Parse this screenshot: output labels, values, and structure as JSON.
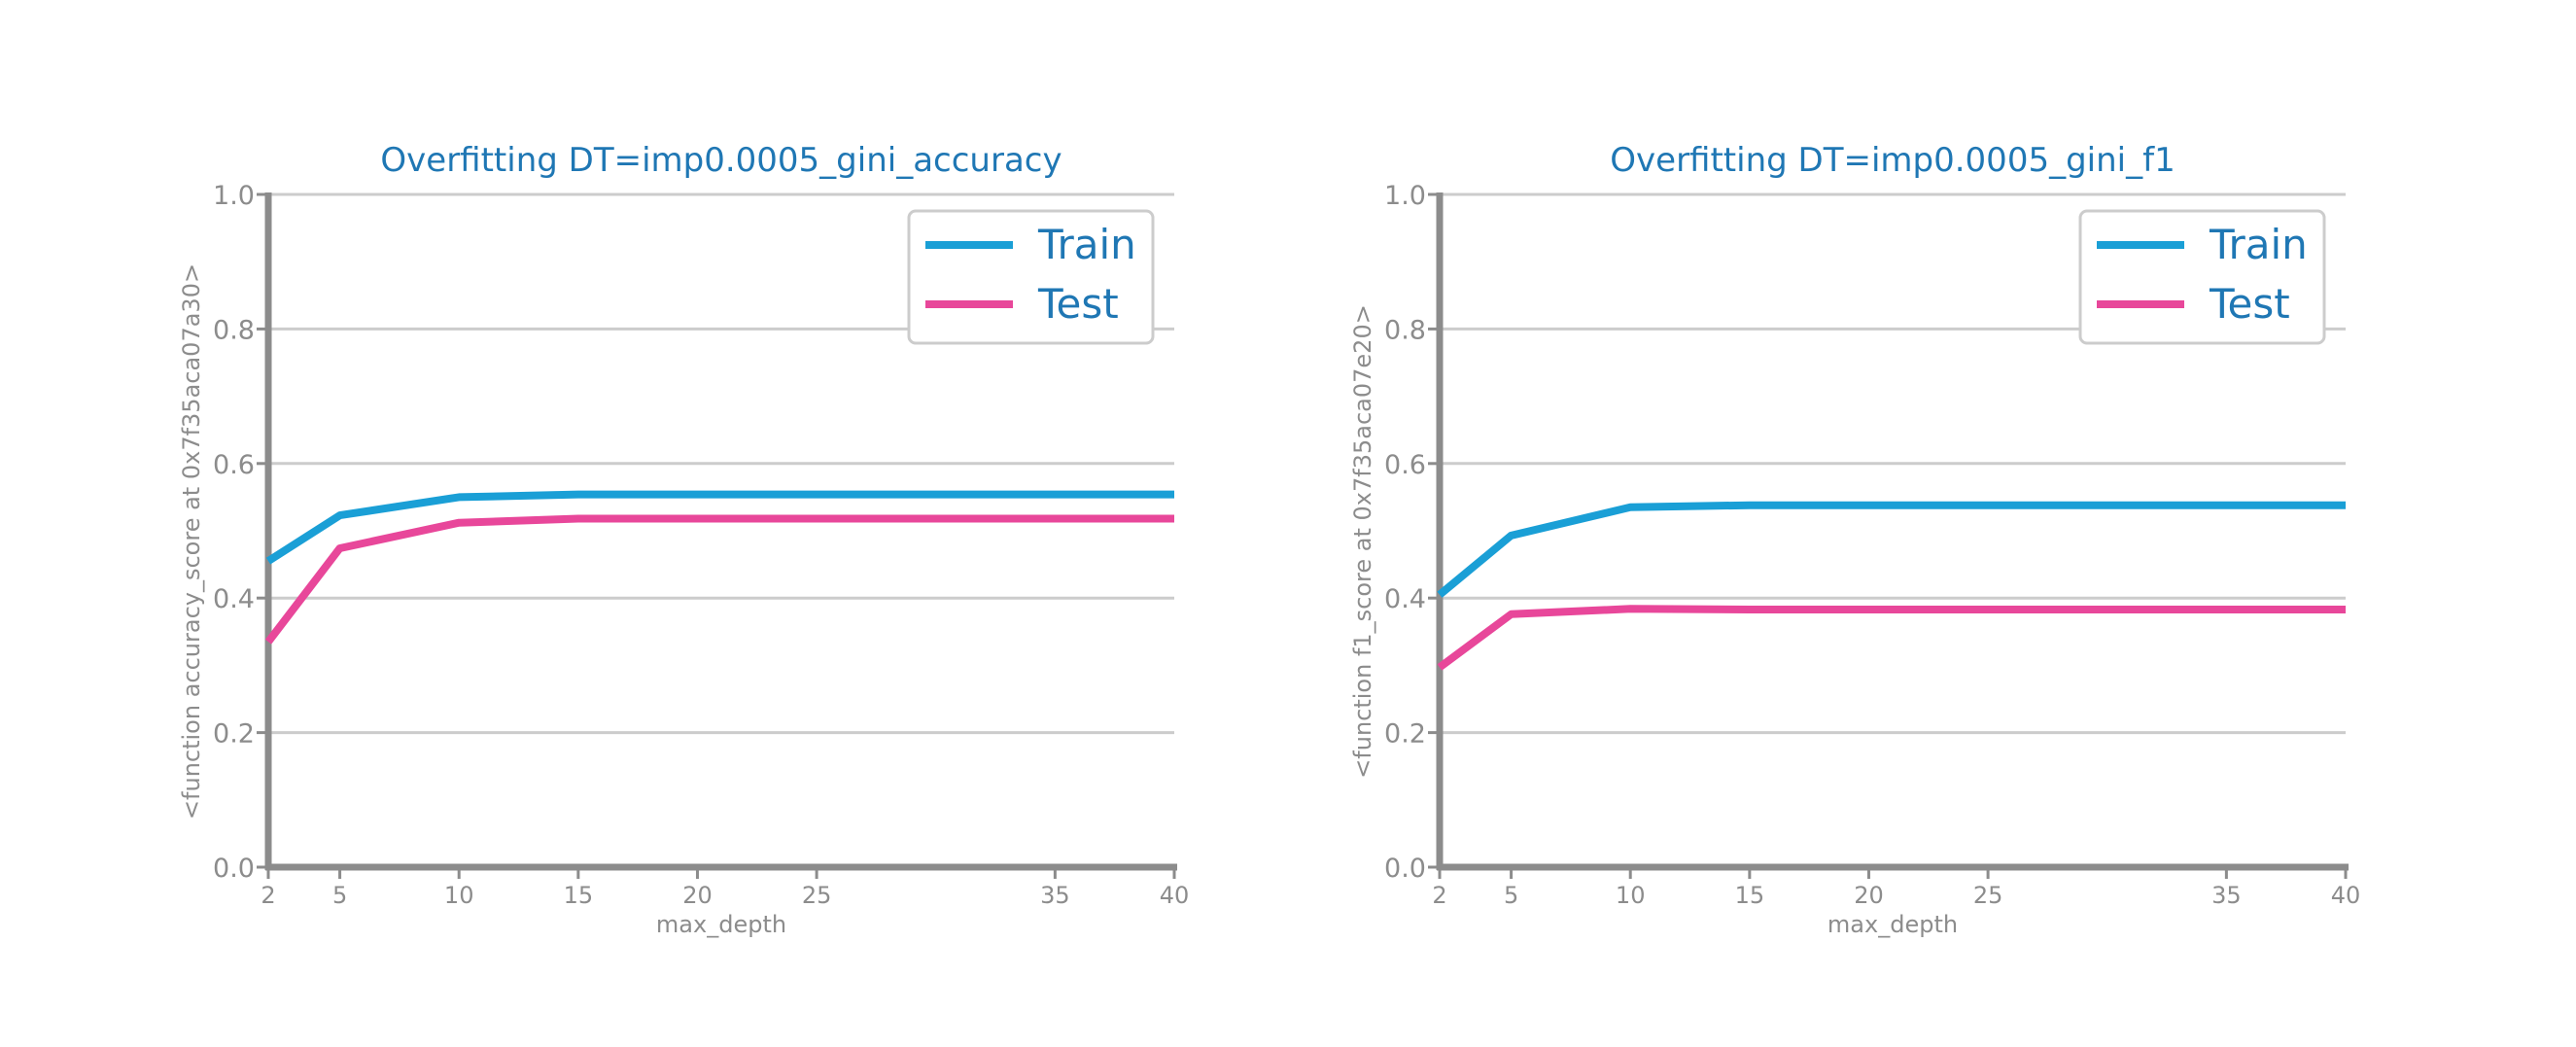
{
  "colors": {
    "title": "#1f77b4",
    "legend_text": "#1f77b4",
    "train": "#1a9fd6",
    "test": "#e8479a",
    "axis": "#8c8c8c",
    "grid": "#cccccc",
    "tick_text": "#8c8c8c",
    "legend_border": "#cccccc"
  },
  "chart_data": [
    {
      "type": "line",
      "title": "Overfitting DT=imp0.0005_gini_accuracy",
      "xlabel": "max_depth",
      "ylabel": "<function accuracy_score at 0x7f35aca07a30>",
      "x": [
        2,
        5,
        10,
        15,
        20,
        25,
        30,
        35,
        40
      ],
      "xticks": [
        2,
        5,
        10,
        15,
        20,
        25,
        35,
        40
      ],
      "xlim": [
        2,
        40
      ],
      "ylim": [
        0.0,
        1.0
      ],
      "yticks": [
        "0.0",
        "0.2",
        "0.4",
        "0.6",
        "0.8",
        "1.0"
      ],
      "grid": "horizontal",
      "legend_position": "top-right",
      "series": [
        {
          "name": "Train",
          "color_key": "train",
          "values": [
            0.455,
            0.523,
            0.55,
            0.554,
            0.554,
            0.554,
            0.554,
            0.554,
            0.554
          ]
        },
        {
          "name": "Test",
          "color_key": "test",
          "values": [
            0.335,
            0.474,
            0.512,
            0.518,
            0.518,
            0.518,
            0.518,
            0.518,
            0.518
          ]
        }
      ]
    },
    {
      "type": "line",
      "title": "Overfitting DT=imp0.0005_gini_f1",
      "xlabel": "max_depth",
      "ylabel": "<function f1_score at 0x7f35aca07e20>",
      "x": [
        2,
        5,
        10,
        15,
        20,
        25,
        30,
        35,
        40
      ],
      "xticks": [
        2,
        5,
        10,
        15,
        20,
        25,
        35,
        40
      ],
      "xlim": [
        2,
        40
      ],
      "ylim": [
        0.0,
        1.0
      ],
      "yticks": [
        "0.0",
        "0.2",
        "0.4",
        "0.6",
        "0.8",
        "1.0"
      ],
      "grid": "horizontal",
      "legend_position": "top-right",
      "series": [
        {
          "name": "Train",
          "color_key": "train",
          "values": [
            0.405,
            0.493,
            0.535,
            0.538,
            0.538,
            0.538,
            0.538,
            0.538,
            0.538
          ]
        },
        {
          "name": "Test",
          "color_key": "test",
          "values": [
            0.297,
            0.376,
            0.384,
            0.383,
            0.383,
            0.383,
            0.383,
            0.383,
            0.383
          ]
        }
      ]
    }
  ]
}
